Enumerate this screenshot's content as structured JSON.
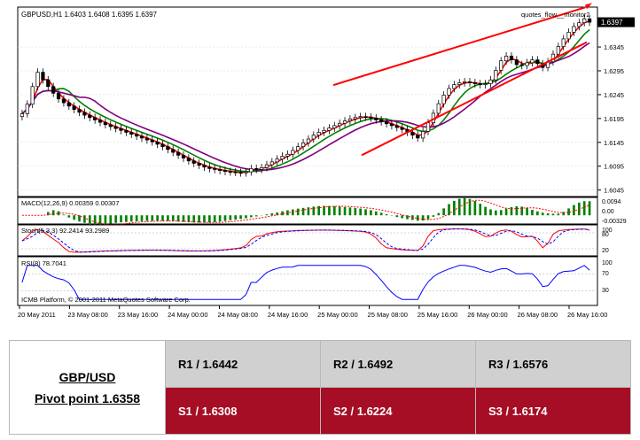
{
  "chart_data": {
    "type": "candlestick",
    "symbol": "GBPUSD,H1",
    "ohlc_header": "GBPUSD,H1  1.6403 1.6408 1.6395 1.6397",
    "indicator_label": "quotes_flow__monitor2",
    "price_axis_ticks": [
      "1.6397",
      "1.6345",
      "1.6295",
      "1.6245",
      "1.6195",
      "1.6145",
      "1.6095",
      "1.6045"
    ],
    "current_price": 1.6397,
    "ylim": [
      1.6035,
      1.6425
    ],
    "x_labels": [
      "20 May 2011",
      "23 May 08:00",
      "23 May 16:00",
      "24 May 00:00",
      "24 May 08:00",
      "24 May 16:00",
      "25 May 00:00",
      "25 May 08:00",
      "25 May 16:00",
      "26 May 00:00",
      "26 May 08:00",
      "26 May 16:00"
    ],
    "closes": [
      1.6205,
      1.6225,
      1.6262,
      1.6292,
      1.6276,
      1.6262,
      1.6248,
      1.6236,
      1.6228,
      1.6221,
      1.6214,
      1.6208,
      1.6202,
      1.6197,
      1.6192,
      1.6187,
      1.6182,
      1.6178,
      1.6174,
      1.617,
      1.6166,
      1.6162,
      1.6158,
      1.6154,
      1.615,
      1.6146,
      1.6141,
      1.6136,
      1.613,
      1.6124,
      1.6118,
      1.6112,
      1.6106,
      1.6101,
      1.6097,
      1.6093,
      1.609,
      1.6088,
      1.6086,
      1.6084,
      1.6083,
      1.6082,
      1.6081,
      1.6083,
      1.609,
      1.6088,
      1.6092,
      1.6098,
      1.6104,
      1.611,
      1.6116,
      1.612,
      1.6128,
      1.6136,
      1.6144,
      1.6152,
      1.616,
      1.6166,
      1.617,
      1.6175,
      1.618,
      1.6185,
      1.619,
      1.6194,
      1.6197,
      1.6199,
      1.6198,
      1.6196,
      1.6192,
      1.6188,
      1.6184,
      1.618,
      1.6176,
      1.6172,
      1.6166,
      1.616,
      1.6154,
      1.6168,
      1.6186,
      1.6206,
      1.6226,
      1.6244,
      1.6258,
      1.6266,
      1.627,
      1.6272,
      1.627,
      1.6268,
      1.6266,
      1.6268,
      1.6276,
      1.6296,
      1.6316,
      1.6326,
      1.6318,
      1.6308,
      1.6306,
      1.6312,
      1.6318,
      1.631,
      1.6302,
      1.6314,
      1.633,
      1.6346,
      1.6362,
      1.6376,
      1.6388,
      1.6396,
      1.6404,
      1.6397
    ],
    "trend_lines": [
      {
        "from": [
          1.6265
        ],
        "to": [
          1.6428
        ],
        "color": "#ff0000"
      },
      {
        "from": [
          1.6118
        ],
        "to": [
          1.6355
        ],
        "color": "#ff0000"
      }
    ],
    "moving_averages": [
      {
        "name": "ma-fast",
        "color": "#ff0000"
      },
      {
        "name": "ma-mid",
        "color": "#008000"
      },
      {
        "name": "ma-slow",
        "color": "#800080"
      }
    ],
    "macd": {
      "label": "MACD(12,26,9) 0.00359 0.00307",
      "ticks": [
        "0.0094",
        "0.00",
        "-0.00329"
      ],
      "ylim": [
        -0.0045,
        0.0105
      ],
      "bar_color": "#008000",
      "signal_color": "#ff0000"
    },
    "stoch": {
      "label": "Stoch(5,3,3) 92.2414 93.2989",
      "ticks": [
        "100",
        "80",
        "20"
      ],
      "ylim": [
        0,
        100
      ],
      "main_color": "#ff0000",
      "signal_color": "#0000ff"
    },
    "rsi": {
      "label": "RSI(8) 78.7041",
      "ticks": [
        "100",
        "70",
        "30"
      ],
      "value": 78.7041,
      "ylim": [
        0,
        100
      ],
      "color": "#0000ff"
    },
    "copyright": "ICMB Platform, © 2001-2011 MetaQuotes Software Corp."
  },
  "pivot": {
    "pair": "GBP/USD",
    "pivot_label": "Pivot point 1.6358",
    "resistances": [
      "R1 / 1.6442",
      "R2 / 1.6492",
      "R3 / 1.6576"
    ],
    "supports": [
      "S1 / 1.6308",
      "S2 / 1.6224",
      "S3 / 1.6174"
    ]
  },
  "colors": {
    "resistance_bg": "#d0d0d0",
    "support_bg": "#a50e25",
    "grid": "#d8d8d8"
  }
}
